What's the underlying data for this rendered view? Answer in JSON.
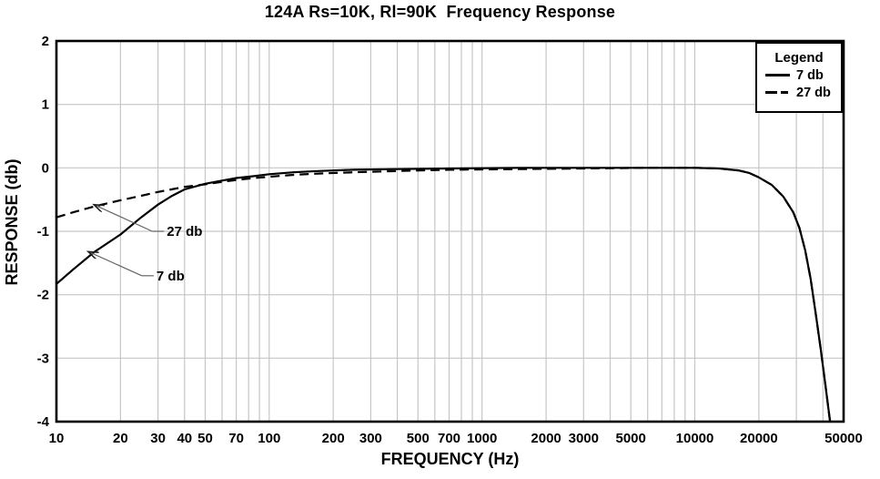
{
  "page": {
    "background": "#ffffff"
  },
  "chart_data": {
    "type": "line",
    "title": "124A Rs=10K, Rl=90K  Frequency Response",
    "xlabel": "FREQUENCY (Hz)",
    "ylabel": "RESPONSE (db)",
    "x_scale": "log",
    "xlim": [
      10,
      50000
    ],
    "ylim": [
      -4,
      2
    ],
    "grid": true,
    "x_tick_values": [
      10,
      20,
      30,
      40,
      50,
      70,
      100,
      200,
      300,
      500,
      700,
      1000,
      2000,
      3000,
      5000,
      10000,
      20000,
      50000
    ],
    "x_gridlines": [
      20,
      30,
      40,
      50,
      60,
      70,
      80,
      90,
      100,
      200,
      300,
      400,
      500,
      600,
      700,
      800,
      900,
      1000,
      2000,
      3000,
      4000,
      5000,
      6000,
      7000,
      8000,
      9000,
      10000,
      20000,
      30000,
      40000
    ],
    "y_tick_values": [
      2,
      1,
      0,
      -1,
      -2,
      -3,
      -4
    ],
    "y_gridlines": [
      1,
      0,
      -1,
      -2,
      -3
    ],
    "colors": {
      "curve": "#000000",
      "grid": "#c6c6c6",
      "frame": "#000000",
      "leader": "#666666",
      "arrowhead": "#222222"
    },
    "legend": {
      "title": "Legend",
      "position": "top-right",
      "entries": [
        {
          "label": "7 db",
          "style": "solid"
        },
        {
          "label": "27 db",
          "style": "dashed"
        }
      ]
    },
    "annotations": [
      {
        "text": "27 db",
        "arrow_to": {
          "hz": 15,
          "db": -0.58
        },
        "label_at": {
          "hz": 33,
          "db": -1.0
        }
      },
      {
        "text": "7 db",
        "arrow_to": {
          "hz": 14.1,
          "db": -1.32
        },
        "label_at": {
          "hz": 29.5,
          "db": -1.7
        }
      }
    ],
    "series": [
      {
        "name": "27 db",
        "style": "dashed",
        "points": [
          [
            10,
            -0.78
          ],
          [
            12,
            -0.7
          ],
          [
            15,
            -0.61
          ],
          [
            20,
            -0.51
          ],
          [
            25,
            -0.44
          ],
          [
            30,
            -0.38
          ],
          [
            40,
            -0.3
          ],
          [
            50,
            -0.26
          ],
          [
            60,
            -0.22
          ],
          [
            70,
            -0.19
          ],
          [
            85,
            -0.16
          ],
          [
            100,
            -0.14
          ],
          [
            130,
            -0.11
          ],
          [
            170,
            -0.09
          ],
          [
            250,
            -0.07
          ],
          [
            400,
            -0.05
          ],
          [
            700,
            -0.03
          ],
          [
            1500,
            -0.02
          ],
          [
            3000,
            -0.01
          ],
          [
            6000,
            0
          ],
          [
            10000,
            0
          ],
          [
            13000,
            -0.01
          ],
          [
            16000,
            -0.04
          ],
          [
            18000,
            -0.08
          ],
          [
            20000,
            -0.15
          ],
          [
            23000,
            -0.27
          ],
          [
            26000,
            -0.45
          ],
          [
            29000,
            -0.7
          ],
          [
            31000,
            -0.95
          ],
          [
            33000,
            -1.3
          ],
          [
            35000,
            -1.75
          ],
          [
            37000,
            -2.3
          ],
          [
            39000,
            -2.85
          ],
          [
            41000,
            -3.4
          ],
          [
            43000,
            -3.95
          ],
          [
            44500,
            -4.3
          ]
        ]
      },
      {
        "name": "7 db",
        "style": "solid",
        "points": [
          [
            10,
            -1.83
          ],
          [
            12,
            -1.6
          ],
          [
            15,
            -1.33
          ],
          [
            20,
            -1.05
          ],
          [
            25,
            -0.78
          ],
          [
            30,
            -0.58
          ],
          [
            35,
            -0.44
          ],
          [
            40,
            -0.34
          ],
          [
            50,
            -0.25
          ],
          [
            60,
            -0.2
          ],
          [
            70,
            -0.16
          ],
          [
            85,
            -0.13
          ],
          [
            100,
            -0.1
          ],
          [
            130,
            -0.07
          ],
          [
            170,
            -0.05
          ],
          [
            250,
            -0.03
          ],
          [
            400,
            -0.02
          ],
          [
            700,
            -0.01
          ],
          [
            1500,
            0
          ],
          [
            3000,
            0
          ],
          [
            6000,
            0
          ],
          [
            10000,
            0
          ],
          [
            13000,
            -0.01
          ],
          [
            16000,
            -0.04
          ],
          [
            18000,
            -0.08
          ],
          [
            20000,
            -0.15
          ],
          [
            23000,
            -0.27
          ],
          [
            26000,
            -0.45
          ],
          [
            29000,
            -0.7
          ],
          [
            31000,
            -0.95
          ],
          [
            33000,
            -1.3
          ],
          [
            35000,
            -1.75
          ],
          [
            37000,
            -2.3
          ],
          [
            39000,
            -2.85
          ],
          [
            41000,
            -3.4
          ],
          [
            43000,
            -3.95
          ],
          [
            44500,
            -4.3
          ]
        ]
      }
    ]
  }
}
